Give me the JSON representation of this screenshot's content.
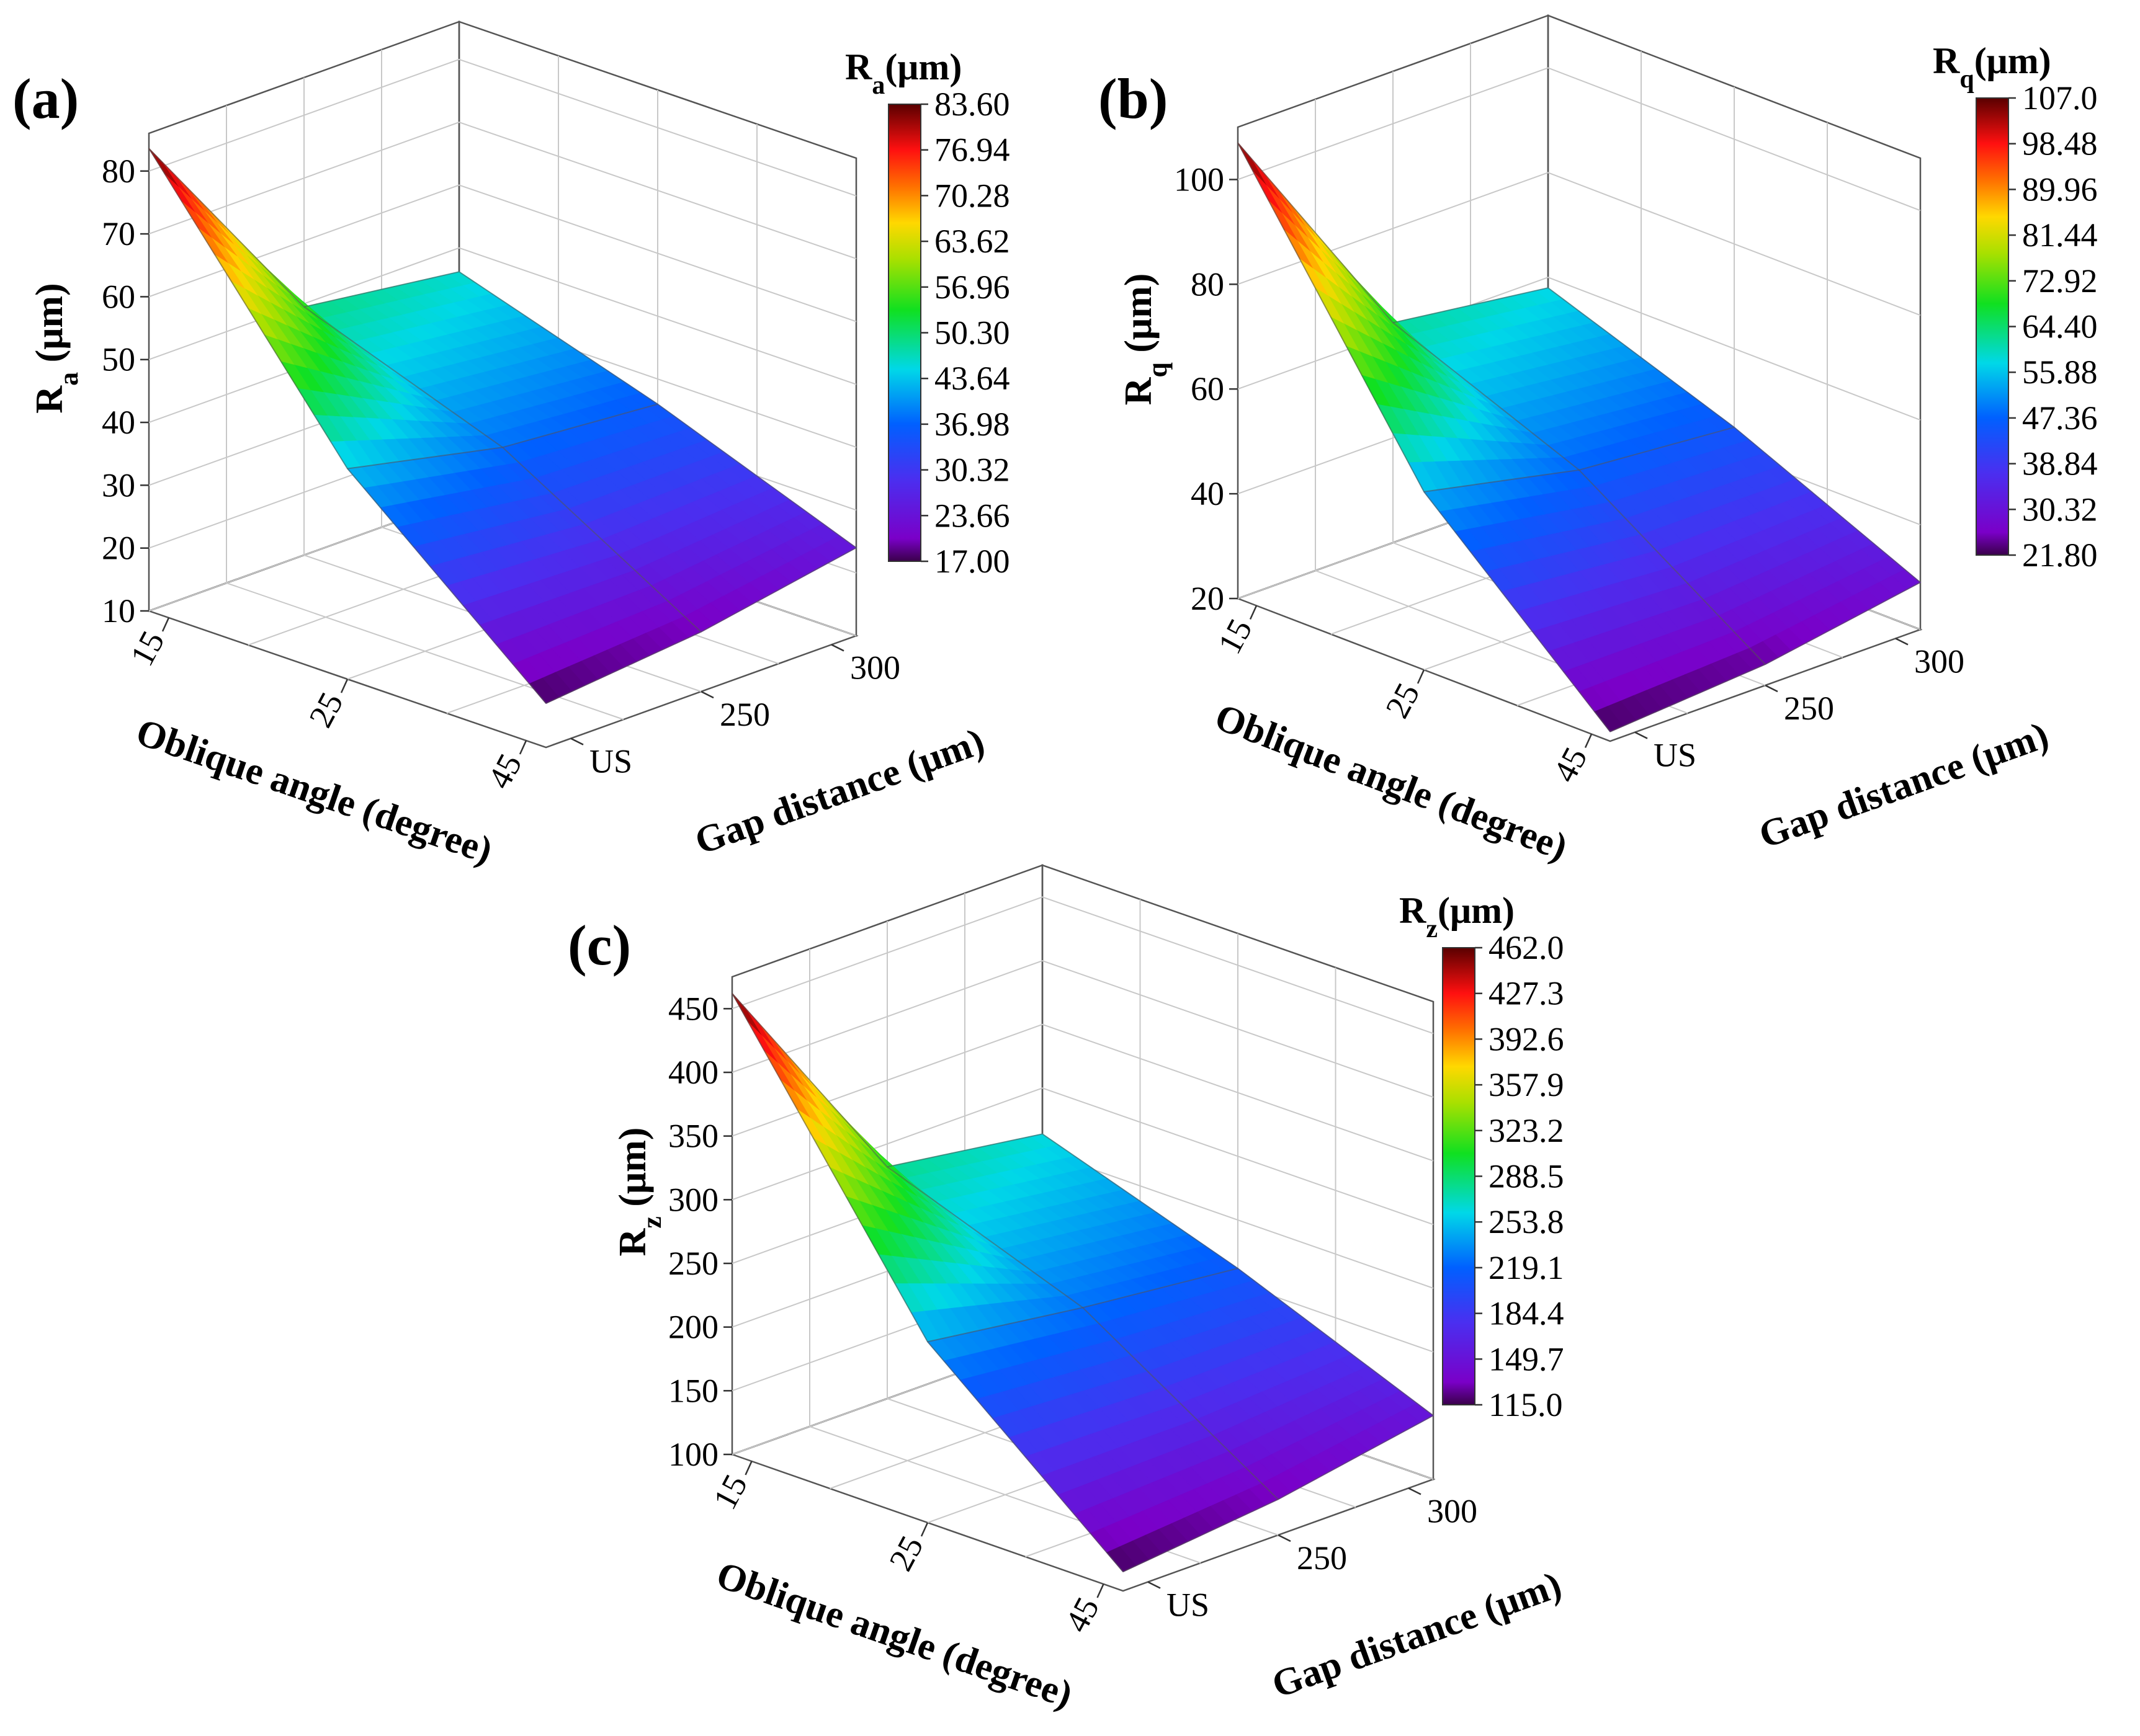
{
  "chart_data": [
    {
      "id": "a",
      "type": "surface3d",
      "panel_label": "(a)",
      "zlabel_base": "R",
      "zlabel_sub": "a",
      "zlabel_unit": " (μm)",
      "colorbar_title_base": "R",
      "colorbar_title_sub": "a",
      "colorbar_title_unit": "(μm)",
      "x_title": "Oblique angle (degree)",
      "x_ticks": [
        "15",
        "25",
        "45"
      ],
      "y_title": "Gap distance (μm)",
      "y_ticks": [
        "US",
        "250",
        "300"
      ],
      "z_ticks": [
        "10",
        "20",
        "30",
        "40",
        "50",
        "60",
        "70",
        "80"
      ],
      "z_range": [
        10,
        86
      ],
      "colorbar_ticks": [
        "83.60",
        "76.94",
        "70.28",
        "63.62",
        "56.96",
        "50.30",
        "43.64",
        "36.98",
        "30.32",
        "23.66",
        "17.00"
      ],
      "colorbar_range": [
        17.0,
        83.6
      ],
      "grid": [
        [
          83.6,
          49.5,
          46.2
        ],
        [
          43.5,
          38.0,
          36.0
        ],
        [
          17.0,
          19.5,
          24.0
        ]
      ]
    },
    {
      "id": "b",
      "type": "surface3d",
      "panel_label": "(b)",
      "zlabel_base": "R",
      "zlabel_sub": "q",
      "zlabel_unit": " (μm)",
      "colorbar_title_base": "R",
      "colorbar_title_sub": "q",
      "colorbar_title_unit": "(μm)",
      "x_title": "Oblique angle (degree)",
      "x_ticks": [
        "15",
        "25",
        "45"
      ],
      "y_title": "Gap distance (μm)",
      "y_ticks": [
        "US",
        "250",
        "300"
      ],
      "z_ticks": [
        "20",
        "40",
        "60",
        "80",
        "100"
      ],
      "z_range": [
        20,
        110
      ],
      "colorbar_ticks": [
        "107.0",
        "98.48",
        "89.96",
        "81.44",
        "72.92",
        "64.40",
        "55.88",
        "47.36",
        "38.84",
        "30.32",
        "21.80"
      ],
      "colorbar_range": [
        21.8,
        107.0
      ],
      "grid": [
        [
          107.0,
          62.0,
          58.0
        ],
        [
          54.0,
          47.5,
          45.0
        ],
        [
          21.8,
          24.0,
          29.0
        ]
      ]
    },
    {
      "id": "c",
      "type": "surface3d",
      "panel_label": "(c)",
      "zlabel_base": "R",
      "zlabel_sub": "z",
      "zlabel_unit": " (μm)",
      "colorbar_title_base": "R",
      "colorbar_title_sub": "z",
      "colorbar_title_unit": "(μm)",
      "x_title": "Oblique angle (degree)",
      "x_ticks": [
        "15",
        "25",
        "45"
      ],
      "y_title": "Gap distance (μm)",
      "y_ticks": [
        "US",
        "250",
        "300"
      ],
      "z_ticks": [
        "100",
        "150",
        "200",
        "250",
        "300",
        "350",
        "400",
        "450"
      ],
      "z_range": [
        100,
        475
      ],
      "colorbar_ticks": [
        "462.0",
        "427.3",
        "392.6",
        "357.9",
        "323.2",
        "288.5",
        "253.8",
        "219.1",
        "184.4",
        "149.7",
        "115.0"
      ],
      "colorbar_range": [
        115.0,
        462.0
      ],
      "grid": [
        [
          462.0,
          282.0,
          264.0
        ],
        [
          242.0,
          225.0,
          212.0
        ],
        [
          115.0,
          128.0,
          150.0
        ]
      ]
    }
  ]
}
